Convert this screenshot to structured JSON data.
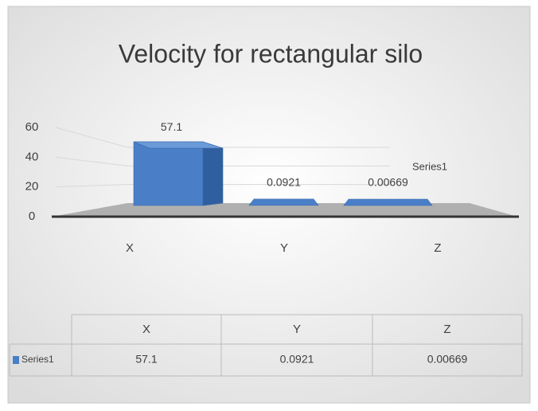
{
  "chart_data": {
    "type": "bar3d",
    "title": "Velocity for rectangular silo",
    "categories": [
      "X",
      "Y",
      "Z"
    ],
    "series": [
      {
        "name": "Series1",
        "color": "#4a7fc8",
        "values": [
          57.1,
          0.0921,
          0.00669
        ]
      }
    ],
    "ylim": [
      0,
      60
    ],
    "yticks": [
      0,
      20,
      40,
      60
    ],
    "grid": true,
    "data_table": true
  }
}
